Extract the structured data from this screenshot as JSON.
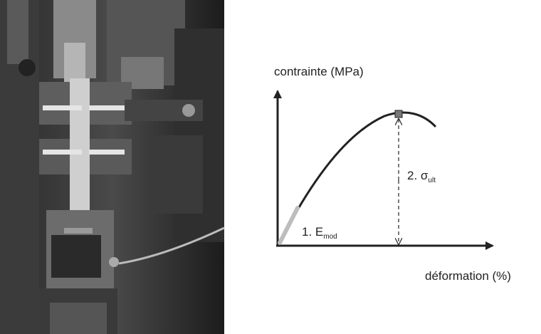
{
  "diagram": {
    "y_axis_label": "contrainte (MPa)",
    "x_axis_label": "déformation (%)",
    "label_1": {
      "text": "1. E",
      "subscript": "mod"
    },
    "label_2": {
      "text": "2. σ",
      "subscript": "ult"
    }
  }
}
